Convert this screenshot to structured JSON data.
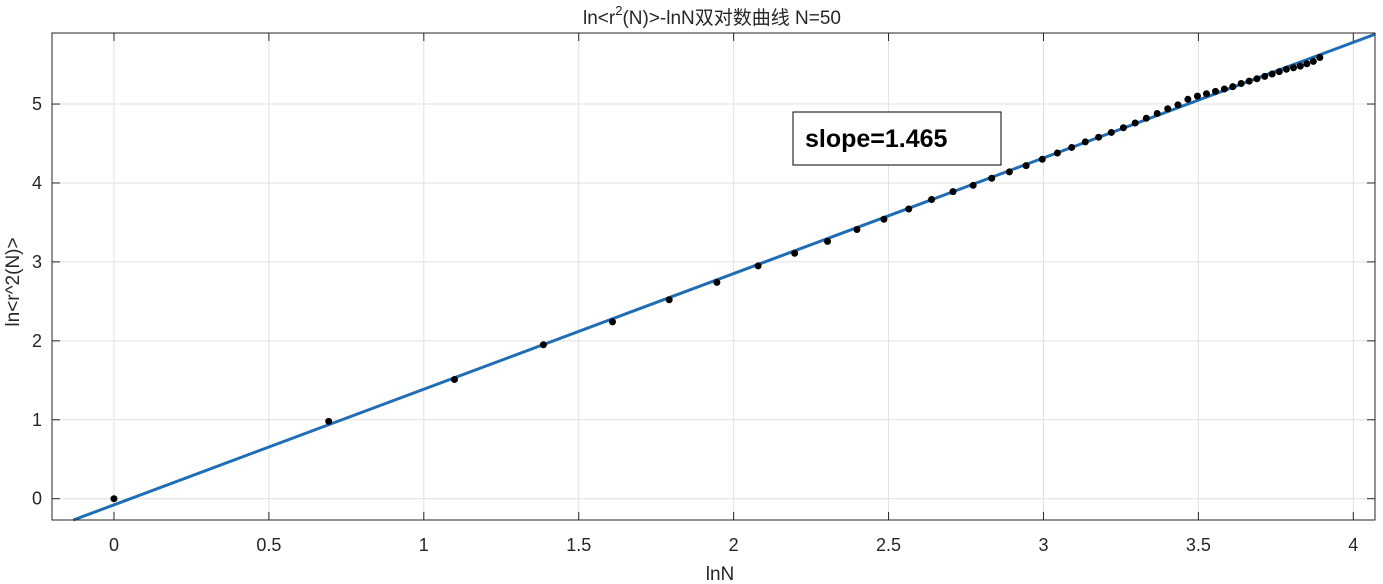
{
  "chart_data": {
    "type": "scatter",
    "title": "ln<r^2(N)>-lnN双对数曲线 N=50",
    "title_parts": {
      "prefix": "ln<r",
      "superscript": "2",
      "suffix": "(N)>-lnN双对数曲线 N=50"
    },
    "xlabel": "lnN",
    "ylabel": "ln<r^2(N)>",
    "xlim": [
      -0.2,
      4.07
    ],
    "ylim": [
      -0.27,
      5.9
    ],
    "grid": true,
    "xticks": [
      0,
      0.5,
      1,
      1.5,
      2,
      2.5,
      3,
      3.5,
      4
    ],
    "xtick_labels": [
      "0",
      "0.5",
      "1",
      "1.5",
      "2",
      "2.5",
      "3",
      "3.5",
      "4"
    ],
    "yticks": [
      0,
      1,
      2,
      3,
      4,
      5
    ],
    "ytick_labels": [
      "0",
      "1",
      "2",
      "3",
      "4",
      "5"
    ],
    "annotation": "slope=1.465",
    "colors": {
      "points": "#000000",
      "fit_line": "#1f6db5",
      "grid": "#e0e0e0",
      "axes": "#262626"
    },
    "series": [
      {
        "x": [
          0,
          0.693,
          1.099,
          1.386,
          1.609,
          1.792,
          1.946,
          2.079,
          2.197,
          2.303,
          2.398,
          2.485,
          2.565,
          2.639,
          2.708,
          2.773,
          2.833,
          2.89,
          2.944,
          2.996,
          3.045,
          3.091,
          3.135,
          3.178,
          3.219,
          3.258,
          3.296,
          3.332,
          3.367,
          3.401,
          3.434,
          3.466,
          3.497,
          3.526,
          3.555,
          3.584,
          3.611,
          3.638,
          3.664,
          3.689,
          3.714,
          3.738,
          3.761,
          3.784,
          3.807,
          3.829,
          3.85,
          3.871,
          3.892
        ],
        "values": [
          0,
          0.98,
          1.51,
          1.95,
          2.24,
          2.52,
          2.74,
          2.95,
          3.11,
          3.26,
          3.41,
          3.54,
          3.67,
          3.79,
          3.89,
          3.97,
          4.06,
          4.14,
          4.22,
          4.3,
          4.38,
          4.45,
          4.52,
          4.58,
          4.64,
          4.7,
          4.76,
          4.82,
          4.88,
          4.94,
          4.99,
          5.06,
          5.1,
          5.13,
          5.16,
          5.19,
          5.22,
          5.26,
          5.29,
          5.32,
          5.35,
          5.38,
          5.41,
          5.44,
          5.46,
          5.48,
          5.51,
          5.54,
          5.59
        ]
      }
    ],
    "fit": {
      "slope": 1.465,
      "intercept": -0.078
    }
  }
}
